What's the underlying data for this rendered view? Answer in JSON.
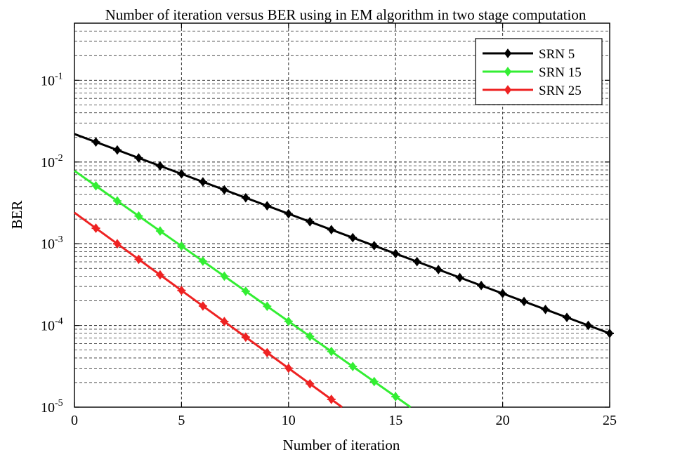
{
  "chart_data": {
    "type": "line",
    "title": "Number of iteration versus BER using in EM algorithm in two stage computation",
    "xlabel": "Number of iteration",
    "ylabel": "BER",
    "xlim": [
      0,
      25
    ],
    "ylim": [
      1e-05,
      0.5
    ],
    "yscale": "log",
    "grid": true,
    "legend_position": "top-right",
    "x_ticks": [
      "0",
      "5",
      "10",
      "15",
      "20",
      "25"
    ],
    "y_ticks": [
      {
        "base": "10",
        "exp": "-5",
        "value": 1e-05
      },
      {
        "base": "10",
        "exp": "-4",
        "value": 0.0001
      },
      {
        "base": "10",
        "exp": "-3",
        "value": 0.001
      },
      {
        "base": "10",
        "exp": "-2",
        "value": 0.01
      },
      {
        "base": "10",
        "exp": "-1",
        "value": 0.1
      }
    ],
    "series": [
      {
        "name": "SRN 5",
        "color": "#000000",
        "x": [
          0,
          25
        ],
        "y": [
          0.022,
          8e-05
        ],
        "marker_x": [
          1,
          2,
          3,
          4,
          5,
          6,
          7,
          8,
          9,
          10,
          11,
          12,
          13,
          14,
          15,
          16,
          17,
          18,
          19,
          20,
          21,
          22,
          23,
          24,
          25
        ]
      },
      {
        "name": "SRN 15",
        "color": "#33ee33",
        "x": [
          0,
          15.7
        ],
        "y": [
          0.0078,
          1e-05
        ],
        "marker_x": [
          1,
          2,
          3,
          4,
          5,
          6,
          7,
          8,
          9,
          10,
          11,
          12,
          13,
          14,
          15
        ]
      },
      {
        "name": "SRN 25",
        "color": "#ee2222",
        "x": [
          0,
          12.5
        ],
        "y": [
          0.0024,
          1e-05
        ],
        "marker_x": [
          1,
          2,
          3,
          4,
          5,
          6,
          7,
          8,
          9,
          10,
          11,
          12
        ]
      }
    ]
  }
}
